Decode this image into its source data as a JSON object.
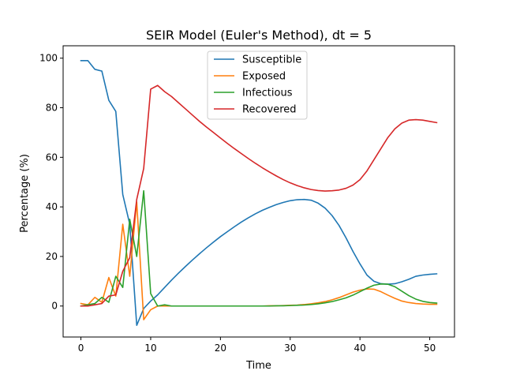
{
  "chart_data": {
    "type": "line",
    "title": "SEIR Model (Euler's Method), dt = 5",
    "xlabel": "Time",
    "ylabel": "Percentage (%)",
    "xlim": [
      -2.55,
      53.55
    ],
    "ylim": [
      -12.5,
      105.0
    ],
    "xticks": [
      0,
      10,
      20,
      30,
      40,
      50
    ],
    "yticks": [
      0,
      20,
      40,
      60,
      80,
      100
    ],
    "grid": false,
    "legend_position": "top-center",
    "x": [
      0,
      1,
      2,
      3,
      4,
      5,
      6,
      7,
      8,
      9,
      10,
      11,
      12,
      13,
      14,
      15,
      16,
      17,
      18,
      19,
      20,
      21,
      22,
      23,
      24,
      25,
      26,
      27,
      28,
      29,
      30,
      31,
      32,
      33,
      34,
      35,
      36,
      37,
      38,
      39,
      40,
      41,
      42,
      43,
      44,
      45,
      46,
      47,
      48,
      49,
      50,
      51
    ],
    "series": [
      {
        "name": "Susceptible",
        "color": "#1f77b4",
        "values": [
          99.0,
          99.0,
          95.5,
          94.8,
          83.0,
          78.5,
          45.0,
          33.0,
          -7.8,
          -1.0,
          2.0,
          4.5,
          7.5,
          10.5,
          13.3,
          16.0,
          18.6,
          21.1,
          23.5,
          25.8,
          28.0,
          30.0,
          32.0,
          33.9,
          35.6,
          37.2,
          38.6,
          39.8,
          40.9,
          41.8,
          42.5,
          42.9,
          43.0,
          42.7,
          41.5,
          39.5,
          36.5,
          32.5,
          27.5,
          22.0,
          17.0,
          12.5,
          10.0,
          9.0,
          8.8,
          9.0,
          9.8,
          10.8,
          12.0,
          12.5,
          12.8,
          13.0
        ]
      },
      {
        "name": "Exposed",
        "color": "#ff7f0e",
        "values": [
          1.0,
          0.5,
          3.5,
          1.5,
          11.5,
          4.0,
          33.0,
          12.0,
          42.0,
          -5.5,
          -1.5,
          0.0,
          0.0,
          0.0,
          0.0,
          0.0,
          0.0,
          0.0,
          0.0,
          0.0,
          0.0,
          0.0,
          0.0,
          0.0,
          0.0,
          0.0,
          0.0,
          0.1,
          0.1,
          0.2,
          0.3,
          0.4,
          0.6,
          0.9,
          1.3,
          1.8,
          2.5,
          3.4,
          4.5,
          5.6,
          6.4,
          6.9,
          6.8,
          5.8,
          4.4,
          3.1,
          2.0,
          1.4,
          1.0,
          0.8,
          0.7,
          0.7
        ]
      },
      {
        "name": "Infectious",
        "color": "#2ca02c",
        "values": [
          0.0,
          0.5,
          1.0,
          3.5,
          1.5,
          12.0,
          7.5,
          35.0,
          20.0,
          46.5,
          5.0,
          0.0,
          0.5,
          0.0,
          0.0,
          0.0,
          0.0,
          0.0,
          0.0,
          0.0,
          0.0,
          0.0,
          0.0,
          0.0,
          0.0,
          0.0,
          0.0,
          0.0,
          0.1,
          0.1,
          0.2,
          0.3,
          0.4,
          0.6,
          0.9,
          1.3,
          1.8,
          2.5,
          3.3,
          4.4,
          5.8,
          7.2,
          8.4,
          8.9,
          8.8,
          7.8,
          6.0,
          4.2,
          2.8,
          1.9,
          1.4,
          1.2
        ]
      },
      {
        "name": "Recovered",
        "color": "#d62728",
        "values": [
          0.0,
          0.0,
          0.5,
          1.0,
          4.0,
          4.5,
          14.0,
          19.5,
          43.0,
          55.5,
          87.5,
          89.0,
          86.5,
          84.5,
          82.0,
          79.5,
          77.0,
          74.5,
          72.2,
          70.0,
          67.8,
          65.6,
          63.5,
          61.5,
          59.5,
          57.6,
          55.8,
          54.1,
          52.5,
          51.0,
          49.7,
          48.6,
          47.7,
          47.0,
          46.6,
          46.4,
          46.5,
          46.8,
          47.5,
          48.8,
          51.0,
          54.5,
          59.0,
          63.5,
          68.0,
          71.5,
          73.8,
          75.0,
          75.2,
          75.0,
          74.5,
          74.0
        ]
      }
    ]
  }
}
